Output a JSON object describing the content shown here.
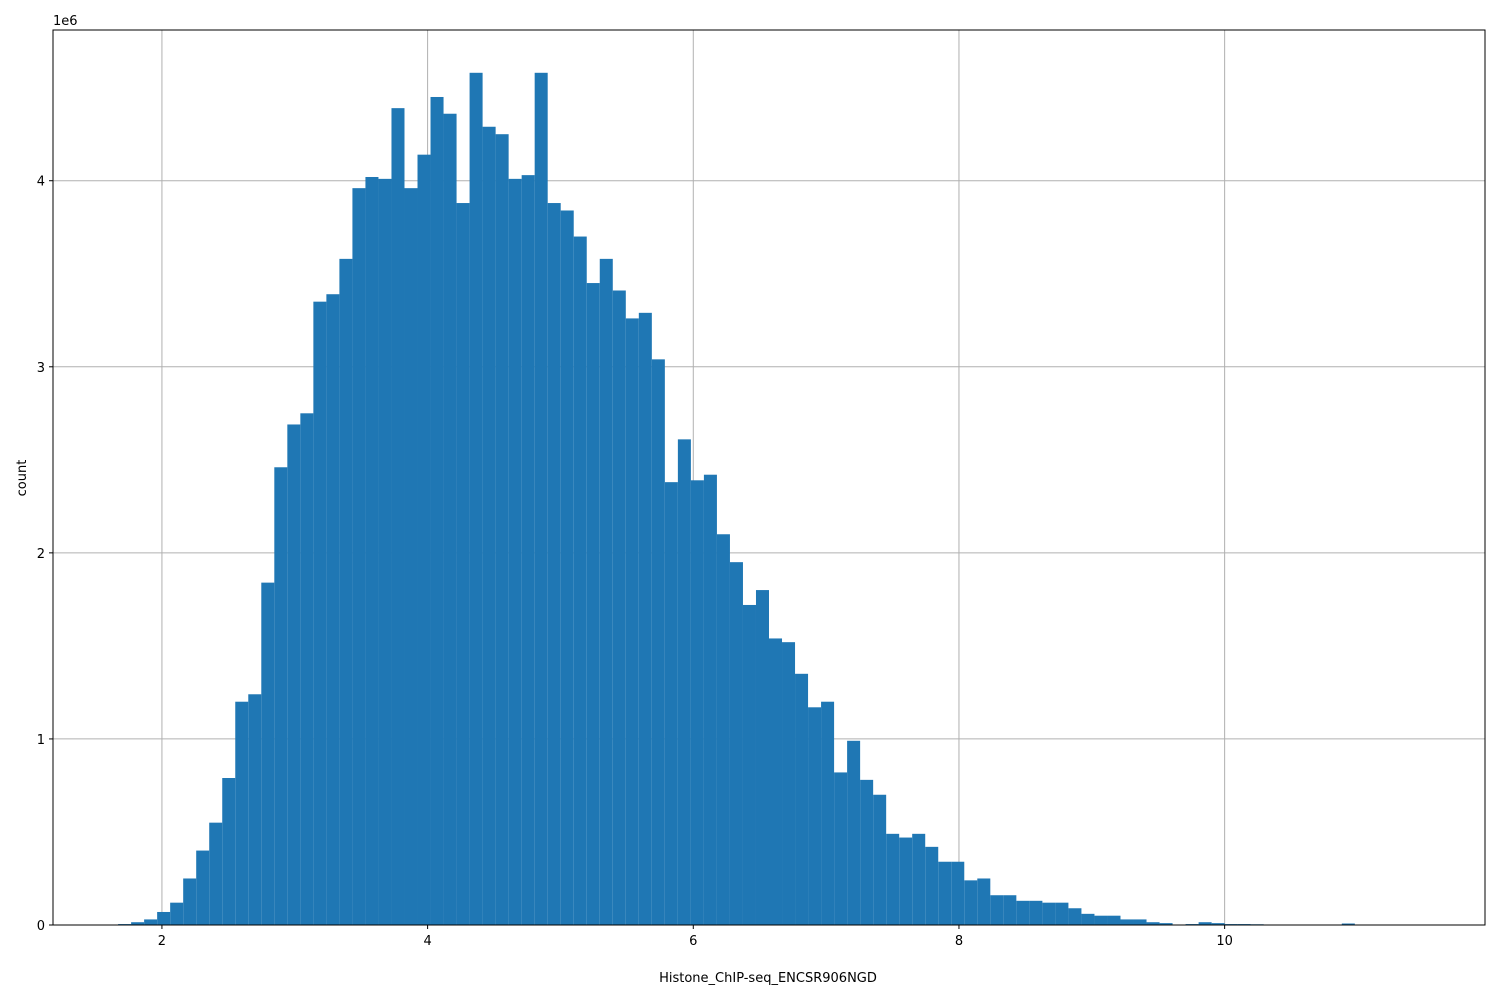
{
  "chart_data": {
    "type": "histogram",
    "x_label": "Histone_ChIP-seq_ENCSR906NGD",
    "y_label": "count",
    "y_offset_label": "1e6",
    "color": "#1f77b4",
    "grid": true,
    "xlim": [
      1.18,
      11.96
    ],
    "ylim": [
      0,
      4810000
    ],
    "xticks": [
      2,
      4,
      6,
      8,
      10
    ],
    "yticks": [
      {
        "value": 0,
        "label": "0"
      },
      {
        "value": 1000000,
        "label": "1"
      },
      {
        "value": 2000000,
        "label": "2"
      },
      {
        "value": 3000000,
        "label": "3"
      },
      {
        "value": 4000000,
        "label": "4"
      }
    ],
    "bins": [
      1.67,
      1.768,
      1.866,
      1.964,
      2.062,
      2.16,
      2.258,
      2.356,
      2.454,
      2.552,
      2.65,
      2.748,
      2.846,
      2.944,
      3.042,
      3.14,
      3.238,
      3.336,
      3.434,
      3.532,
      3.63,
      3.728,
      3.826,
      3.924,
      4.022,
      4.12,
      4.218,
      4.316,
      4.414,
      4.512,
      4.61,
      4.708,
      4.806,
      4.904,
      5.002,
      5.1,
      5.198,
      5.296,
      5.394,
      5.492,
      5.59,
      5.688,
      5.786,
      5.884,
      5.982,
      6.08,
      6.178,
      6.276,
      6.374,
      6.472,
      6.57,
      6.668,
      6.766,
      6.864,
      6.962,
      7.06,
      7.158,
      7.256,
      7.354,
      7.452,
      7.55,
      7.648,
      7.746,
      7.844,
      7.942,
      8.04,
      8.138,
      8.236,
      8.334,
      8.432,
      8.53,
      8.628,
      8.726,
      8.824,
      8.922,
      9.02,
      9.118,
      9.216,
      9.314,
      9.412,
      9.51,
      9.608,
      9.706,
      9.804,
      9.902,
      10.0,
      10.098,
      10.196,
      10.294,
      10.392,
      10.49,
      10.588,
      10.686,
      10.784,
      10.882,
      10.98,
      11.078,
      11.176,
      11.274,
      11.372,
      11.47
    ],
    "values": [
      5000,
      15000,
      30000,
      70000,
      120000,
      250000,
      400000,
      550000,
      790000,
      1200000,
      1240000,
      1840000,
      2460000,
      2690000,
      2750000,
      3350000,
      3390000,
      3580000,
      3960000,
      4020000,
      4010000,
      4390000,
      3960000,
      4140000,
      4450000,
      4360000,
      3880000,
      4580000,
      4290000,
      4250000,
      4010000,
      4030000,
      4580000,
      3880000,
      3840000,
      3700000,
      3450000,
      3580000,
      3410000,
      3260000,
      3290000,
      3040000,
      2380000,
      2610000,
      2390000,
      2420000,
      2100000,
      1950000,
      1720000,
      1800000,
      1540000,
      1520000,
      1350000,
      1170000,
      1200000,
      820000,
      990000,
      780000,
      700000,
      490000,
      470000,
      490000,
      420000,
      340000,
      340000,
      240000,
      250000,
      160000,
      160000,
      130000,
      130000,
      120000,
      120000,
      90000,
      60000,
      50000,
      50000,
      30000,
      30000,
      15000,
      10000,
      2000,
      5000,
      15000,
      10000,
      5000,
      5000,
      4000,
      1000,
      1000,
      1000,
      1000,
      1000,
      1000,
      8000,
      1000,
      0,
      0,
      0,
      0
    ]
  }
}
